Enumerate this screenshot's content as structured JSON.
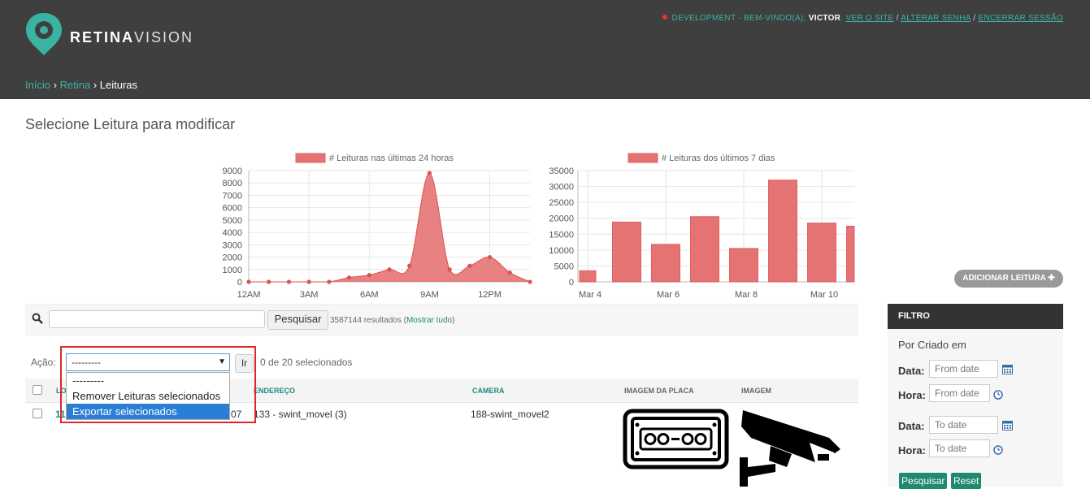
{
  "header": {
    "brand_bold": "RETINA",
    "brand_light": "VISION",
    "user_prefix": "DEVELOPMENT - BEM-VINDO(A),",
    "user_name": "VICTOR",
    "links": [
      "VER O SITE",
      "ALTERAR SENHA",
      "ENCERRAR SESSÃO"
    ]
  },
  "breadcrumb": {
    "items": [
      "Início",
      "Retina"
    ],
    "current": "Leituras"
  },
  "page_title": "Selecione Leitura para modificar",
  "add_button": "ADICIONAR LEITURA",
  "search": {
    "value": "",
    "button": "Pesquisar",
    "results": "3587144 resultados (",
    "show_all": "Mostrar tudo",
    "results_close": ")"
  },
  "actions": {
    "label": "Ação:",
    "selected": "---------",
    "go": "Ir",
    "count": "0 de 20 selecionados",
    "options": [
      "---------",
      "Remover Leituras selecionados",
      "Exportar selecionados"
    ]
  },
  "table": {
    "headers": [
      "LO",
      "ENDEREÇO",
      "CAMERA",
      "IMAGEM DA PLACA",
      "IMAGEM"
    ],
    "row": {
      "id_fragment": "11",
      "hidden_fragment": "07",
      "endereco": "133 - swint_movel (3)",
      "camera": "188-swint_movel2"
    }
  },
  "filter": {
    "title": "FILTRO",
    "section": "Por Criado em",
    "date_label": "Data:",
    "time_label": "Hora:",
    "from_date": "From date",
    "to_date": "To date",
    "search_btn": "Pesquisar",
    "reset_btn": "Reset"
  },
  "chart_data": [
    {
      "type": "area",
      "legend": "# Leituras nas últimas 24 horas",
      "x": [
        0,
        1,
        2,
        3,
        4,
        5,
        6,
        7,
        8,
        9,
        10,
        11,
        12,
        13,
        14
      ],
      "values": [
        0,
        0,
        0,
        0,
        0,
        350,
        550,
        1000,
        1300,
        8800,
        1000,
        1300,
        2000,
        750,
        0
      ],
      "xticks": [
        "12AM",
        "3AM",
        "6AM",
        "9AM",
        "12PM"
      ],
      "yticks": [
        "0",
        "1000",
        "2000",
        "3000",
        "4000",
        "5000",
        "6000",
        "7000",
        "8000",
        "9000"
      ],
      "ylim": [
        0,
        9000
      ],
      "color": "#e57373"
    },
    {
      "type": "bar",
      "legend": "# Leituras dos últimos 7 dias",
      "values": [
        3500,
        18800,
        11800,
        20500,
        10500,
        32000,
        18500,
        17500
      ],
      "xticks": [
        "Mar 4",
        "Mar 6",
        "Mar 8",
        "Mar 10"
      ],
      "yticks": [
        "0",
        "5000",
        "10000",
        "15000",
        "20000",
        "25000",
        "30000",
        "35000"
      ],
      "ylim": [
        0,
        35000
      ],
      "color": "#e57373"
    }
  ]
}
